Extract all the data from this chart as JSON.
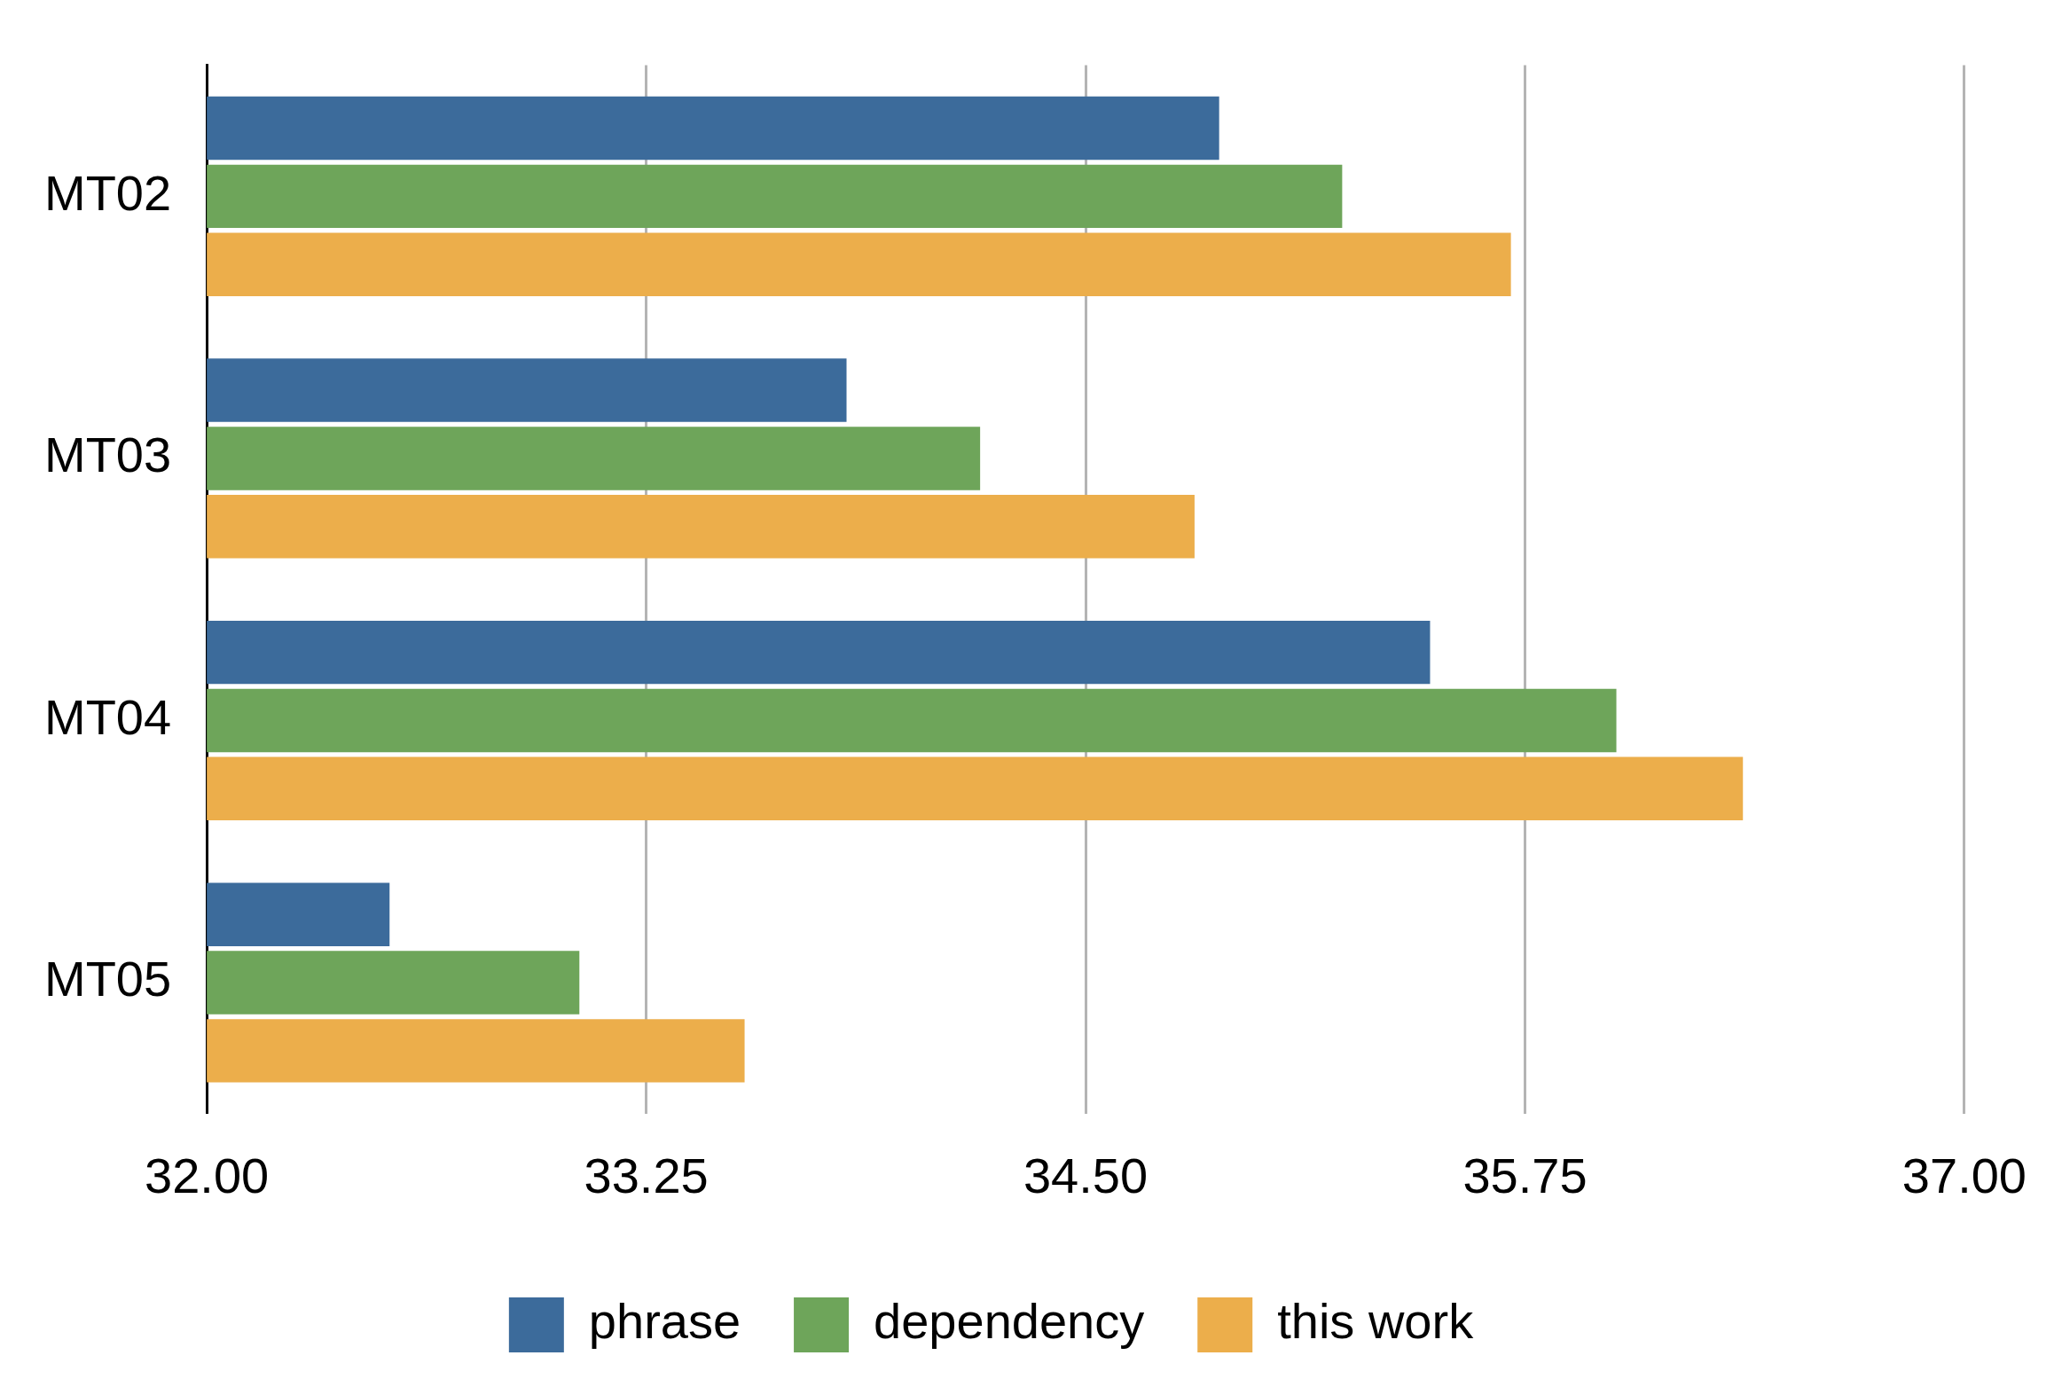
{
  "chart_data": {
    "type": "bar",
    "orientation": "horizontal",
    "categories": [
      "MT02",
      "MT03",
      "MT04",
      "MT05"
    ],
    "series": [
      {
        "name": "phrase",
        "color": "#3c6b9b",
        "values": [
          34.88,
          33.82,
          35.48,
          32.52
        ]
      },
      {
        "name": "dependency",
        "color": "#6ea55a",
        "values": [
          35.23,
          34.2,
          36.01,
          33.06
        ]
      },
      {
        "name": "this work",
        "color": "#ecae4b",
        "values": [
          35.71,
          34.81,
          36.37,
          33.53
        ]
      }
    ],
    "xlim": [
      32,
      37
    ],
    "xticks": [
      {
        "value": 32,
        "label": "32.00"
      },
      {
        "value": 33.25,
        "label": "33.25"
      },
      {
        "value": 34.5,
        "label": "34.50"
      },
      {
        "value": 35.75,
        "label": "35.75"
      },
      {
        "value": 37,
        "label": "37.00"
      }
    ],
    "grid": "x",
    "legend": "bottom"
  }
}
